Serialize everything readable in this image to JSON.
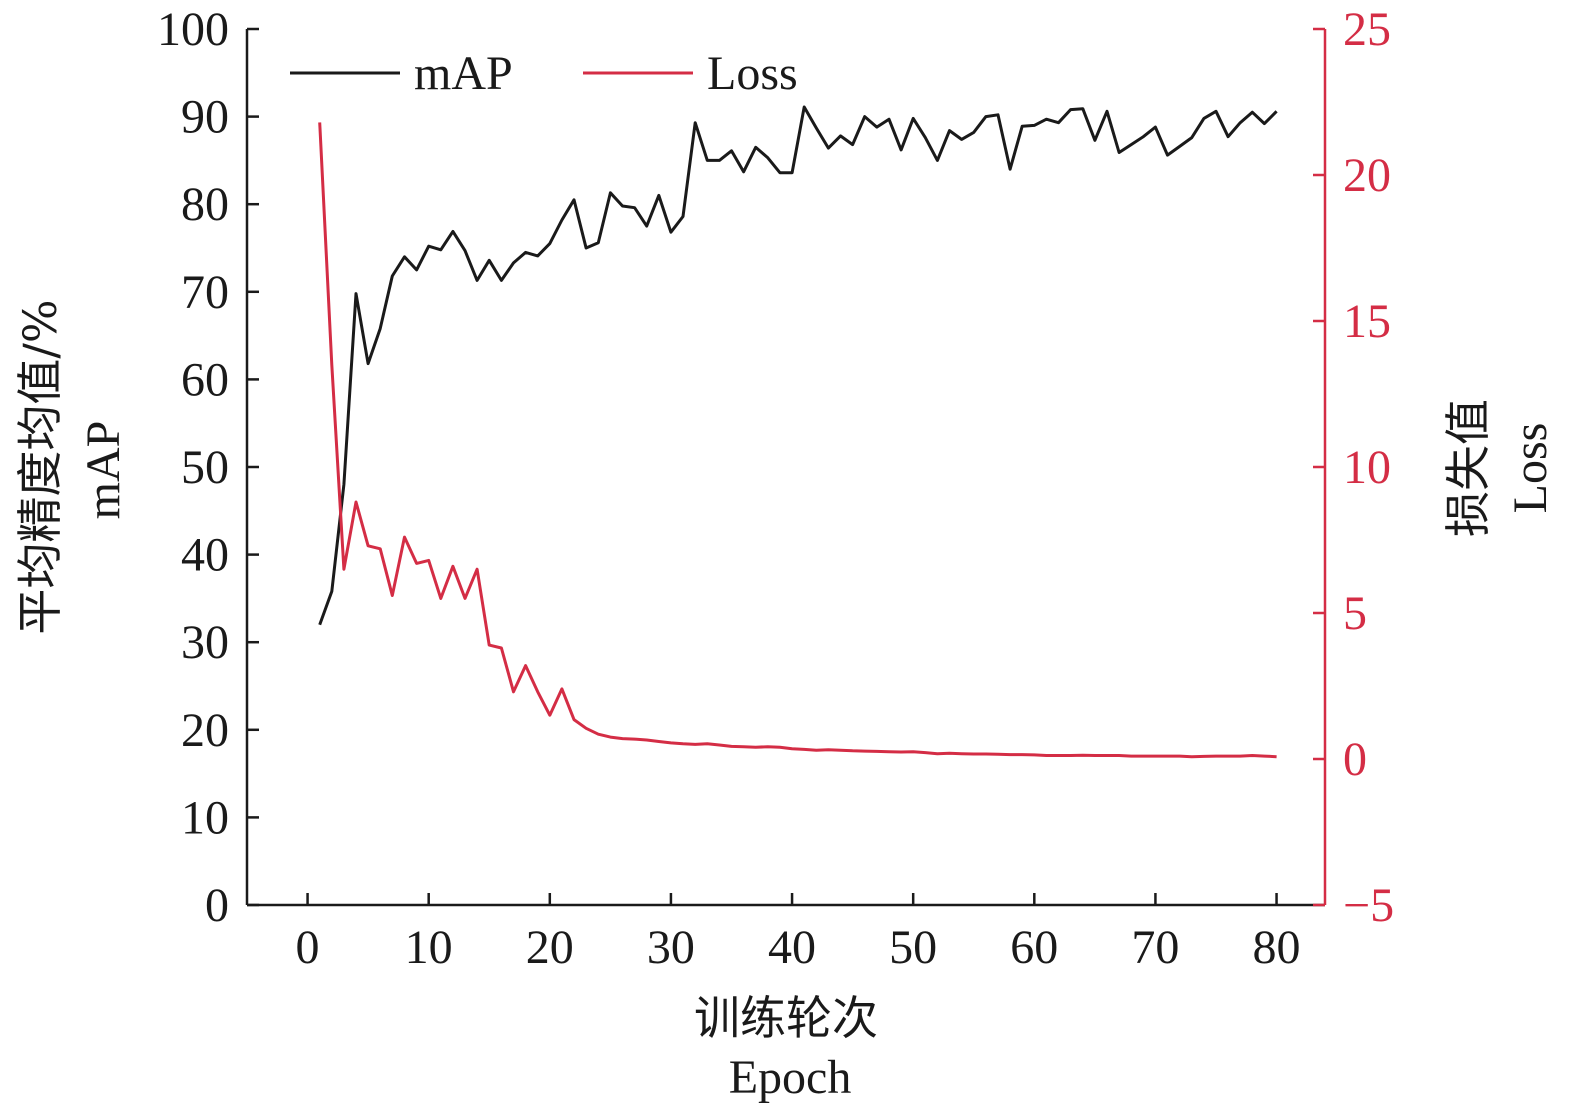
{
  "colors": {
    "map": "#1a1a1a",
    "loss": "#d42d45",
    "axis": "#1a1a1a"
  },
  "legend": {
    "map_label": "mAP",
    "loss_label": "Loss",
    "placement": "top-left"
  },
  "chart_data": {
    "type": "line",
    "title": "",
    "xlabel": "训练轮次",
    "xlabel_en": "Epoch",
    "ylabel": "平均精度均值/%",
    "ylabel_en": "mAP",
    "y2label": "损失值",
    "y2label_en": "Loss",
    "xlim": [
      -5,
      84
    ],
    "ylim": [
      0,
      100
    ],
    "y2lim": [
      -5,
      25
    ],
    "x_ticks": [
      0,
      10,
      20,
      30,
      40,
      50,
      60,
      70,
      80
    ],
    "y_ticks": [
      0,
      10,
      20,
      30,
      40,
      50,
      60,
      70,
      80,
      90,
      100
    ],
    "y2_ticks": [
      25,
      20,
      15,
      10,
      5,
      0,
      -5
    ],
    "y2_tick_labels": [
      "25",
      "20",
      "15",
      "10",
      "5",
      "0",
      "−5"
    ],
    "grid": false,
    "x": [
      1,
      2,
      3,
      4,
      5,
      6,
      7,
      8,
      9,
      10,
      11,
      12,
      13,
      14,
      15,
      16,
      17,
      18,
      19,
      20,
      21,
      22,
      23,
      24,
      25,
      26,
      27,
      28,
      29,
      30,
      31,
      32,
      33,
      34,
      35,
      36,
      37,
      38,
      39,
      40,
      41,
      42,
      43,
      44,
      45,
      46,
      47,
      48,
      49,
      50,
      51,
      52,
      53,
      54,
      55,
      56,
      57,
      58,
      59,
      60,
      61,
      62,
      63,
      64,
      65,
      66,
      67,
      68,
      69,
      70,
      71,
      72,
      73,
      74,
      75,
      76,
      77,
      78,
      79,
      80
    ],
    "series": [
      {
        "name": "mAP",
        "axis": "left",
        "values": [
          32.0,
          35.8,
          48.0,
          69.8,
          61.8,
          65.8,
          71.8,
          74.0,
          72.5,
          75.2,
          74.8,
          76.9,
          74.7,
          71.3,
          73.6,
          71.3,
          73.3,
          74.5,
          74.1,
          75.5,
          78.2,
          80.5,
          75.0,
          75.6,
          81.3,
          79.8,
          79.6,
          77.5,
          81.0,
          76.8,
          78.6,
          89.3,
          85.0,
          85.0,
          86.1,
          83.7,
          86.5,
          85.3,
          83.6,
          83.6,
          91.1,
          88.7,
          86.4,
          87.8,
          86.8,
          90.0,
          88.8,
          89.7,
          86.2,
          89.8,
          87.6,
          85.0,
          88.4,
          87.4,
          88.2,
          90.0,
          90.2,
          84.0,
          88.9,
          89.0,
          89.7,
          89.3,
          90.8,
          90.9,
          87.3,
          90.6,
          85.9,
          86.8,
          87.7,
          88.8,
          85.6,
          86.6,
          87.6,
          89.8,
          90.6,
          87.7,
          89.3,
          90.5,
          89.2,
          90.6
        ]
      },
      {
        "name": "Loss",
        "axis": "right",
        "values": [
          21.8,
          13.5,
          6.5,
          8.8,
          7.3,
          7.2,
          5.6,
          7.6,
          6.7,
          6.8,
          5.5,
          6.6,
          5.5,
          6.5,
          3.9,
          3.8,
          2.3,
          3.2,
          2.3,
          1.5,
          2.4,
          1.35,
          1.05,
          0.85,
          0.75,
          0.7,
          0.68,
          0.65,
          0.6,
          0.55,
          0.52,
          0.5,
          0.52,
          0.48,
          0.43,
          0.42,
          0.4,
          0.42,
          0.4,
          0.35,
          0.33,
          0.3,
          0.32,
          0.3,
          0.28,
          0.27,
          0.26,
          0.25,
          0.24,
          0.25,
          0.22,
          0.18,
          0.2,
          0.18,
          0.17,
          0.17,
          0.16,
          0.15,
          0.15,
          0.14,
          0.12,
          0.12,
          0.12,
          0.13,
          0.12,
          0.12,
          0.12,
          0.1,
          0.1,
          0.1,
          0.1,
          0.1,
          0.08,
          0.09,
          0.1,
          0.1,
          0.1,
          0.12,
          0.1,
          0.08
        ]
      }
    ]
  }
}
